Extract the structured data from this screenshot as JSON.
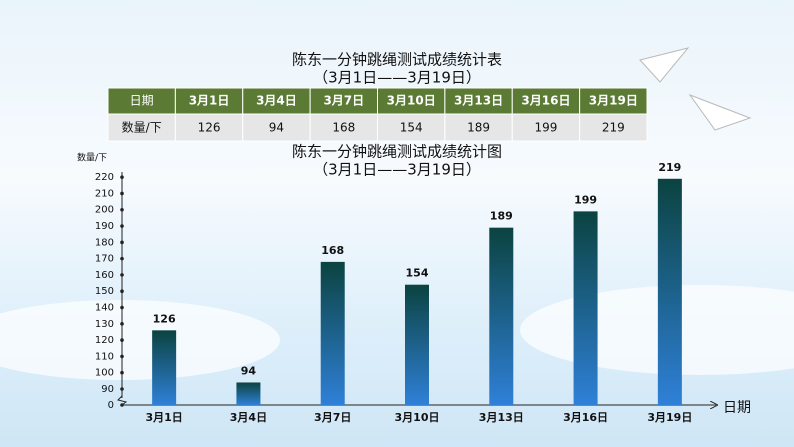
{
  "table": {
    "title": "陈东一分钟跳绳测试成绩统计表",
    "subtitle": "（3月1日——3月19日）",
    "header": [
      "日期",
      "3月1日",
      "3月4日",
      "3月7日",
      "3月10日",
      "3月13日",
      "3月16日",
      "3月19日"
    ],
    "row": [
      "数量/下",
      126,
      94,
      168,
      154,
      189,
      199,
      219
    ]
  },
  "chart_data": {
    "type": "bar",
    "title": "陈东一分钟跳绳测试成绩统计图",
    "subtitle": "（3月1日——3月19日）",
    "x_label": "日期",
    "y_label": "数量/下",
    "categories": [
      "3月1日",
      "3月4日",
      "3月7日",
      "3月10日",
      "3月13日",
      "3月16日",
      "3月19日"
    ],
    "values": [
      126,
      94,
      168,
      154,
      189,
      199,
      219
    ],
    "color": [
      "#0b4340",
      "#2f80d8"
    ],
    "ylim": [
      0,
      225
    ],
    "axis_break": [
      0,
      90
    ],
    "yticks": [
      0,
      90,
      100,
      110,
      120,
      130,
      140,
      150,
      160,
      170,
      180,
      190,
      200,
      210,
      220
    ],
    "grid": false
  }
}
